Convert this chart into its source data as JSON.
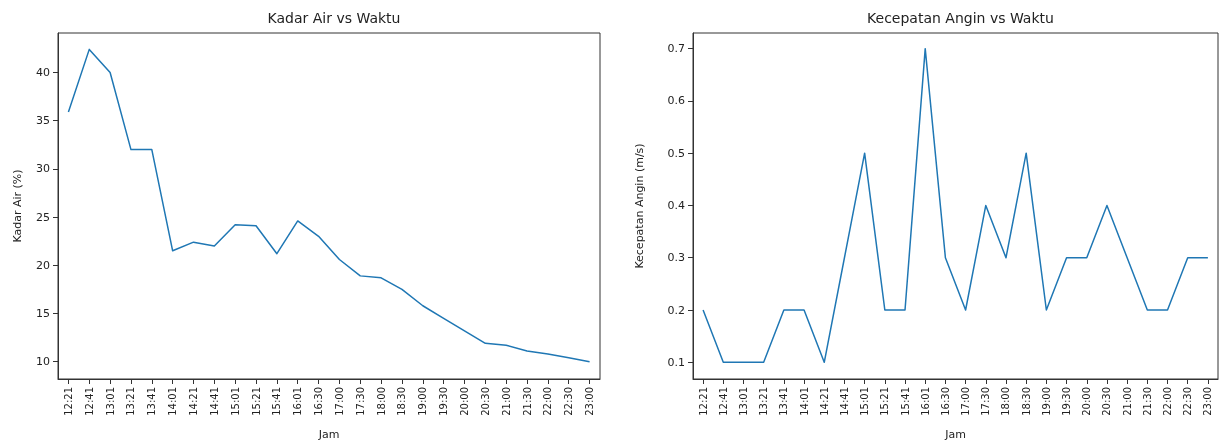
{
  "chart_data": [
    {
      "type": "line",
      "title": "Kadar Air vs Waktu",
      "xlabel": "Jam",
      "ylabel": "Kadar Air (%)",
      "categories": [
        "12:21",
        "12:41",
        "13:01",
        "13:21",
        "13:41",
        "14:01",
        "14:21",
        "14:41",
        "15:01",
        "15:21",
        "15:41",
        "16:01",
        "16:30",
        "17:00",
        "17:30",
        "18:00",
        "18:30",
        "19:00",
        "19:30",
        "20:00",
        "20:30",
        "21:00",
        "21:30",
        "22:00",
        "22:30",
        "23:00"
      ],
      "series": [
        {
          "color": "#1f77b4",
          "values": [
            35.9,
            42.4,
            40.0,
            32.0,
            32.0,
            21.5,
            22.4,
            22.0,
            24.2,
            24.1,
            21.2,
            24.6,
            23.0,
            20.6,
            18.9,
            18.7,
            17.5,
            15.8,
            14.5,
            13.2,
            11.9,
            11.7,
            11.1,
            10.8,
            10.4,
            10.0
          ]
        }
      ],
      "ylim": [
        8.2,
        44.1
      ],
      "yticks": [
        10,
        15,
        20,
        25,
        30,
        35,
        40
      ],
      "grid": false,
      "marker": "none"
    },
    {
      "type": "line",
      "title": "Kecepatan Angin vs Waktu",
      "xlabel": "Jam",
      "ylabel": "Kecepatan Angin (m/s)",
      "categories": [
        "12:21",
        "12:41",
        "13:01",
        "13:21",
        "13:41",
        "14:01",
        "14:21",
        "14:41",
        "15:01",
        "15:21",
        "15:41",
        "16:01",
        "16:30",
        "17:00",
        "17:30",
        "18:00",
        "18:30",
        "19:00",
        "19:30",
        "20:00",
        "20:30",
        "21:00",
        "21:30",
        "22:00",
        "22:30",
        "23:00"
      ],
      "series": [
        {
          "color": "#1f77b4",
          "values": [
            0.2,
            0.1,
            0.1,
            0.1,
            0.2,
            0.2,
            0.1,
            0.3,
            0.5,
            0.2,
            0.2,
            0.7,
            0.3,
            0.2,
            0.4,
            0.3,
            0.5,
            0.2,
            0.3,
            0.3,
            0.4,
            0.3,
            0.2,
            0.2,
            0.3,
            0.3
          ]
        }
      ],
      "ylim": [
        0.068,
        0.73
      ],
      "yticks": [
        0.1,
        0.2,
        0.3,
        0.4,
        0.5,
        0.6,
        0.7
      ],
      "grid": false,
      "marker": "none"
    }
  ]
}
